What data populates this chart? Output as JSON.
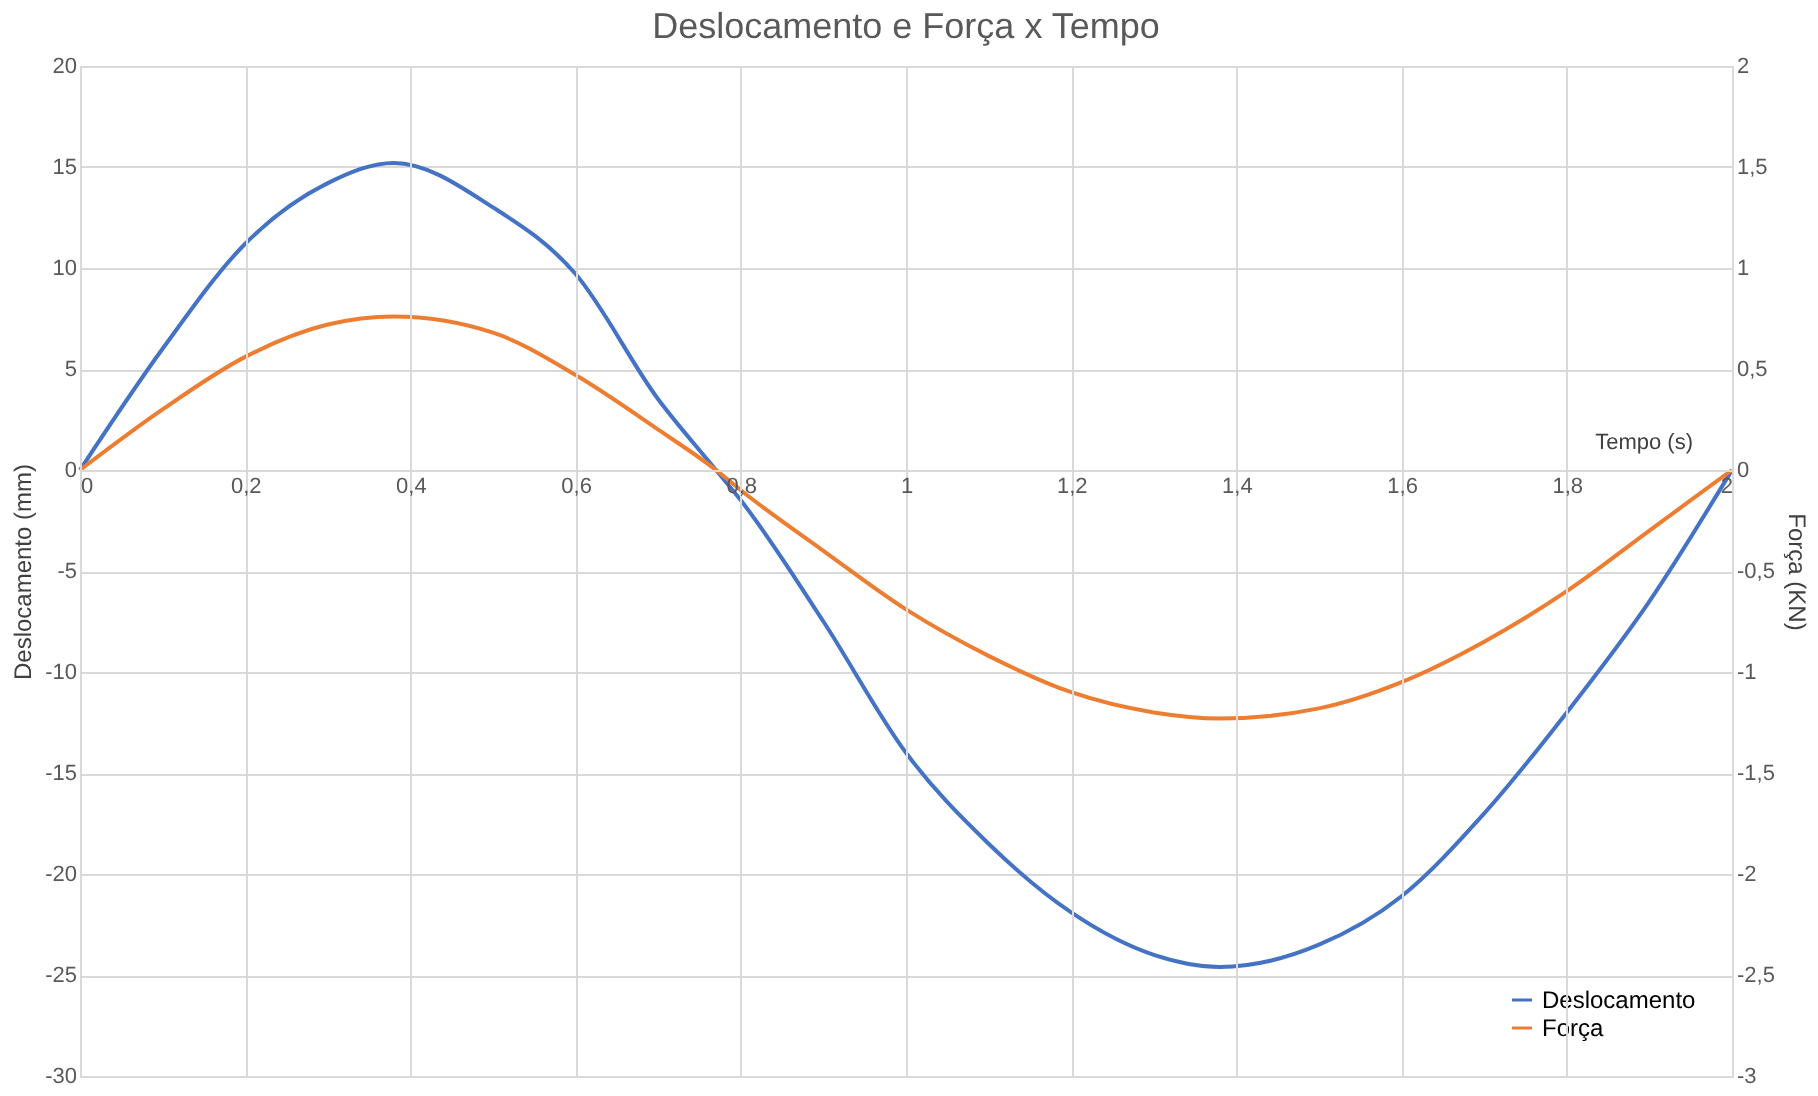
{
  "chart_data": {
    "type": "line",
    "title": "Deslocamento e Força x Tempo",
    "xlabel": "Tempo (s)",
    "ylabel": "Deslocamento (mm)",
    "y2label": "Força (KN)",
    "x": [
      0,
      0.1,
      0.2,
      0.3,
      0.38,
      0.5,
      0.6,
      0.7,
      0.77,
      0.8,
      0.9,
      1.0,
      1.1,
      1.2,
      1.3,
      1.38,
      1.5,
      1.6,
      1.7,
      1.8,
      1.9,
      2.0
    ],
    "series": [
      {
        "name": "Deslocamento",
        "color": "#4472c4",
        "values": [
          0,
          6,
          11.2,
          14.2,
          15.2,
          13,
          9.7,
          3.5,
          0,
          -1.5,
          -7.5,
          -14,
          -18.5,
          -21.9,
          -24,
          -24.6,
          -23.5,
          -21.1,
          -17,
          -12,
          -6.5,
          0
        ]
      },
      {
        "name": "Força",
        "color": "#ed7d31",
        "axis": "y2",
        "values": [
          0,
          0.3,
          0.56,
          0.72,
          0.76,
          0.68,
          0.47,
          0.2,
          0,
          -0.1,
          -0.4,
          -0.69,
          -0.92,
          -1.1,
          -1.2,
          -1.23,
          -1.18,
          -1.05,
          -0.85,
          -0.6,
          -0.3,
          0
        ]
      }
    ],
    "xlim": [
      0,
      2
    ],
    "xticks": [
      0,
      {
        "value": 0.2,
        "label": "0,2"
      },
      {
        "value": 0.4,
        "label": "0,4"
      },
      {
        "value": 0.6,
        "label": "0,6"
      },
      {
        "value": 0.8,
        "label": "0,8"
      },
      1,
      {
        "value": 1.2,
        "label": "1,2"
      },
      {
        "value": 1.4,
        "label": "1,4"
      },
      {
        "value": 1.6,
        "label": "1,6"
      },
      {
        "value": 1.8,
        "label": "1,8"
      },
      2
    ],
    "ylim": [
      -30,
      20
    ],
    "yticks": [
      -30,
      -25,
      -20,
      -15,
      -10,
      -5,
      0,
      5,
      10,
      15,
      20
    ],
    "y2lim": [
      -3,
      2
    ],
    "y2ticks": [
      -3,
      {
        "value": -2.5,
        "label": "-2,5"
      },
      -2,
      {
        "value": -1.5,
        "label": "-1,5"
      },
      -1,
      {
        "value": -0.5,
        "label": "-0,5"
      },
      0,
      {
        "value": 0.5,
        "label": "0,5"
      },
      1,
      {
        "value": 1.5,
        "label": "1,5"
      },
      2
    ],
    "grid": true,
    "legend": "bottom right",
    "marker": "none",
    "line_style": "solid"
  }
}
